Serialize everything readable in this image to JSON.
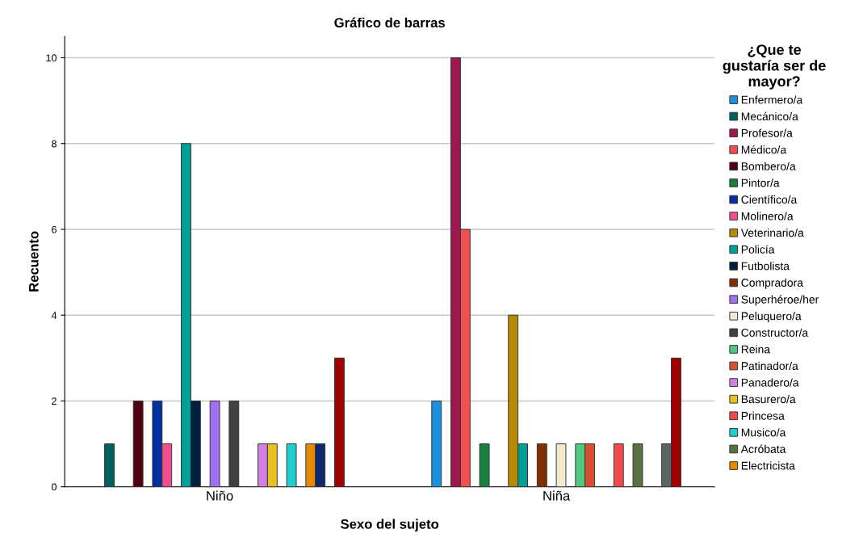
{
  "chart_data": {
    "type": "bar",
    "title": "Gráfico de barras",
    "xlabel": "Sexo del sujeto",
    "ylabel": "Recuento",
    "legend_title": "¿Que te\ngustaría ser de\nmayor?",
    "categories": [
      "Niño",
      "Niña"
    ],
    "ylim": [
      0,
      10.5
    ],
    "yticks": [
      0,
      2,
      4,
      6,
      8,
      10
    ],
    "grid": "y",
    "legend": "right",
    "series": [
      {
        "name": "Enfermero/a",
        "color": "#1e90e0",
        "values": [
          null,
          2
        ]
      },
      {
        "name": "Mecánico/a",
        "color": "#006060",
        "values": [
          1,
          null
        ]
      },
      {
        "name": "Profesor/a",
        "color": "#9e1850",
        "values": [
          null,
          10
        ]
      },
      {
        "name": "Médico/a",
        "color": "#f05050",
        "values": [
          null,
          6
        ]
      },
      {
        "name": "Bombero/a",
        "color": "#500010",
        "values": [
          2,
          null
        ]
      },
      {
        "name": "Pintor/a",
        "color": "#1a8040",
        "values": [
          null,
          1
        ]
      },
      {
        "name": "Científico/a",
        "color": "#0030a0",
        "values": [
          2,
          null
        ]
      },
      {
        "name": "Molinero/a",
        "color": "#f05090",
        "values": [
          1,
          null
        ]
      },
      {
        "name": "Veterinario/a",
        "color": "#b88a00",
        "values": [
          null,
          4
        ]
      },
      {
        "name": "Policía",
        "color": "#00a098",
        "values": [
          8,
          1
        ]
      },
      {
        "name": "Futbolista",
        "color": "#002040",
        "values": [
          2,
          null
        ]
      },
      {
        "name": "Compradora",
        "color": "#803000",
        "values": [
          null,
          1
        ]
      },
      {
        "name": "Superhéroe/her",
        "color": "#a070f0",
        "values": [
          2,
          null
        ]
      },
      {
        "name": "Peluquero/a",
        "color": "#f0ead0",
        "values": [
          null,
          1
        ]
      },
      {
        "name": "Constructor/a",
        "color": "#404040",
        "values": [
          2,
          null
        ]
      },
      {
        "name": "Reina",
        "color": "#50c880",
        "values": [
          null,
          1
        ]
      },
      {
        "name": "Patinador/a",
        "color": "#d85030",
        "values": [
          null,
          1
        ]
      },
      {
        "name": "Panadero/a",
        "color": "#d080e0",
        "values": [
          1,
          null
        ]
      },
      {
        "name": "Basurero/a",
        "color": "#e8c020",
        "values": [
          1,
          null
        ]
      },
      {
        "name": "Princesa",
        "color": "#f04a4a",
        "values": [
          null,
          1
        ]
      },
      {
        "name": "Musico/a",
        "color": "#20d0d0",
        "values": [
          1,
          null
        ]
      },
      {
        "name": "Acróbata",
        "color": "#5a7040",
        "values": [
          null,
          1
        ]
      },
      {
        "name": "Electricista",
        "color": "#e88a00",
        "values": [
          1,
          null
        ]
      },
      {
        "color": "#102870",
        "values": [
          1,
          null
        ]
      },
      {
        "color": "#5a6460",
        "values": [
          null,
          1
        ]
      },
      {
        "color": "#a00000",
        "values": [
          3,
          3
        ]
      }
    ]
  }
}
